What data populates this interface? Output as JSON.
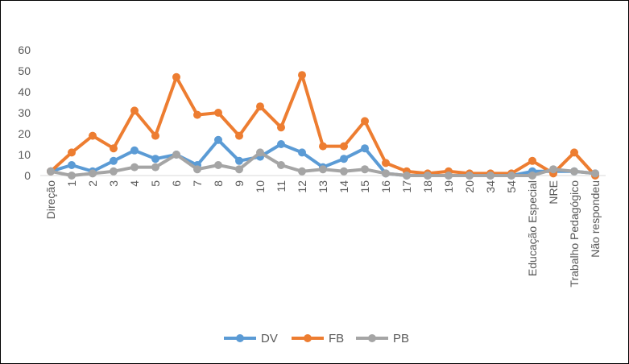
{
  "chart_data": {
    "type": "line",
    "title": "",
    "xlabel": "",
    "ylabel": "",
    "ylim": [
      0,
      60
    ],
    "yticks": [
      0,
      10,
      20,
      30,
      40,
      50,
      60
    ],
    "grid": false,
    "legend_position": "bottom",
    "categories": [
      "Direção",
      "1",
      "2",
      "3",
      "4",
      "5",
      "6",
      "7",
      "8",
      "9",
      "10",
      "11",
      "12",
      "13",
      "14",
      "15",
      "16",
      "17",
      "18",
      "19",
      "20",
      "34",
      "54",
      "Educação Especial",
      "NRE",
      "Trabalho Pedagógico",
      "Não respondeu"
    ],
    "series": [
      {
        "name": "DV",
        "color": "#5b9bd5",
        "values": [
          2,
          5,
          2,
          7,
          12,
          8,
          10,
          5,
          17,
          7,
          9,
          15,
          11,
          4,
          8,
          13,
          1,
          0,
          0,
          0,
          0,
          0,
          0,
          2,
          2,
          2,
          1
        ]
      },
      {
        "name": "FB",
        "color": "#ed7d31",
        "values": [
          2,
          11,
          19,
          13,
          31,
          19,
          47,
          29,
          30,
          19,
          33,
          23,
          48,
          14,
          14,
          26,
          6,
          2,
          1,
          2,
          1,
          1,
          1,
          7,
          1,
          11,
          0
        ]
      },
      {
        "name": "PB",
        "color": "#a5a5a5",
        "values": [
          2,
          0,
          1,
          2,
          4,
          4,
          10,
          3,
          5,
          3,
          11,
          5,
          2,
          3,
          2,
          3,
          1,
          0,
          0,
          0,
          0,
          0,
          0,
          0,
          3,
          2,
          1
        ]
      }
    ]
  }
}
